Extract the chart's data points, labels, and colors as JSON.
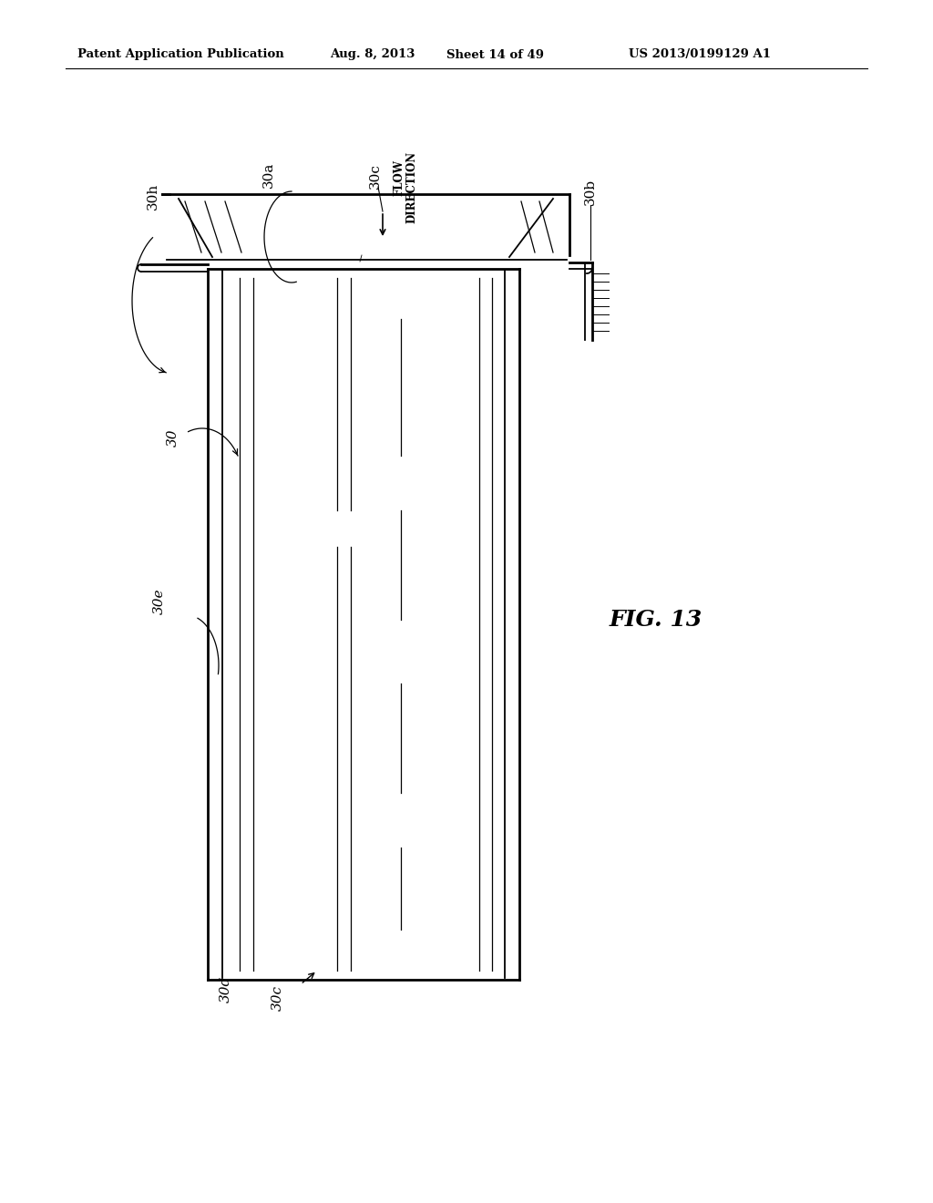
{
  "bg_color": "#ffffff",
  "header_text": "Patent Application Publication",
  "header_date": "Aug. 8, 2013",
  "header_sheet": "Sheet 14 of 49",
  "header_patent": "US 2013/0199129 A1",
  "fig_label": "FIG. 13"
}
